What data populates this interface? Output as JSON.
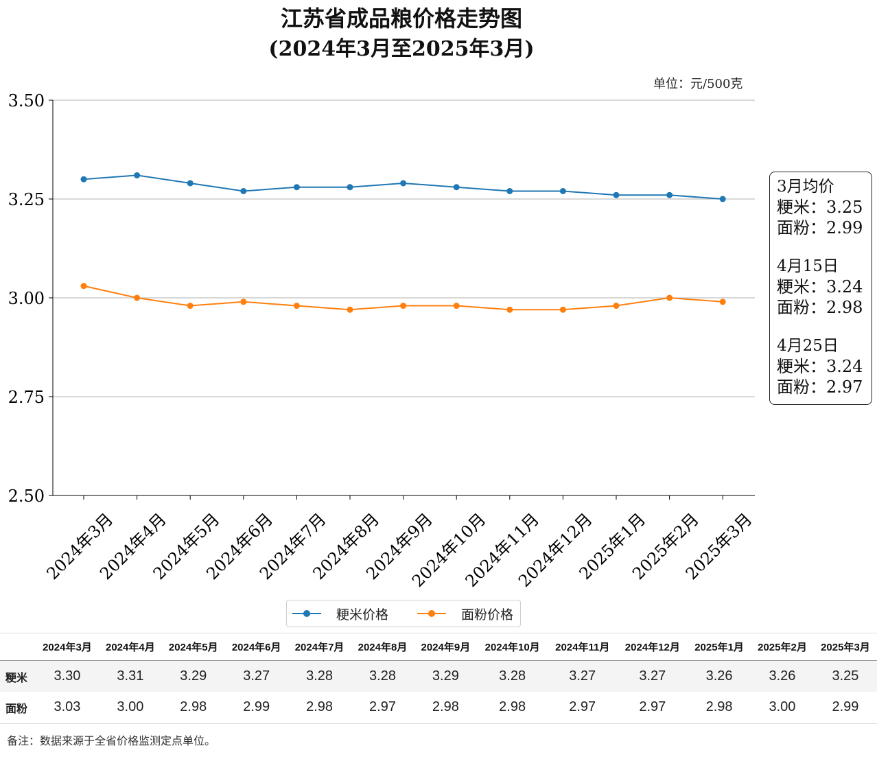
{
  "title_line1": "江苏省成品粮价格走势图",
  "title_line2": "(2024年3月至2025年3月)",
  "unit": "单位：元/500克",
  "chart_data": {
    "type": "line",
    "categories": [
      "2024年3月",
      "2024年4月",
      "2024年5月",
      "2024年6月",
      "2024年7月",
      "2024年8月",
      "2024年9月",
      "2024年10月",
      "2024年11月",
      "2024年12月",
      "2025年1月",
      "2025年2月",
      "2025年3月"
    ],
    "series": [
      {
        "name": "粳米价格",
        "color": "#1f77b4",
        "values": [
          3.3,
          3.31,
          3.29,
          3.27,
          3.28,
          3.28,
          3.29,
          3.28,
          3.27,
          3.27,
          3.26,
          3.26,
          3.25
        ]
      },
      {
        "name": "面粉价格",
        "color": "#ff7f0e",
        "values": [
          3.03,
          3.0,
          2.98,
          2.99,
          2.98,
          2.97,
          2.98,
          2.98,
          2.97,
          2.97,
          2.98,
          3.0,
          2.99
        ]
      }
    ],
    "ylim": [
      2.5,
      3.5
    ],
    "yticks": [
      "2.50",
      "2.75",
      "3.00",
      "3.25",
      "3.50"
    ],
    "grid": "horizontal",
    "legend_position": "bottom-center"
  },
  "infobox": [
    {
      "heading": "3月均价",
      "lines": [
        "粳米：3.25",
        "面粉：2.99"
      ]
    },
    {
      "heading": "4月15日",
      "lines": [
        "粳米：3.24",
        "面粉：2.98"
      ]
    },
    {
      "heading": "4月25日",
      "lines": [
        "粳米：3.24",
        "面粉：2.97"
      ]
    }
  ],
  "table": {
    "headers": [
      "2024年3月",
      "2024年4月",
      "2024年5月",
      "2024年6月",
      "2024年7月",
      "2024年8月",
      "2024年9月",
      "2024年10月",
      "2024年11月",
      "2024年12月",
      "2025年1月",
      "2025年2月",
      "2025年3月"
    ],
    "rows": [
      {
        "label": "粳米",
        "values": [
          "3.30",
          "3.31",
          "3.29",
          "3.27",
          "3.28",
          "3.28",
          "3.29",
          "3.28",
          "3.27",
          "3.27",
          "3.26",
          "3.26",
          "3.25"
        ]
      },
      {
        "label": "面粉",
        "values": [
          "3.03",
          "3.00",
          "2.98",
          "2.99",
          "2.98",
          "2.97",
          "2.98",
          "2.98",
          "2.97",
          "2.97",
          "2.98",
          "3.00",
          "2.99"
        ]
      }
    ]
  },
  "footnote": "备注：数据来源于全省价格监测定点单位。"
}
